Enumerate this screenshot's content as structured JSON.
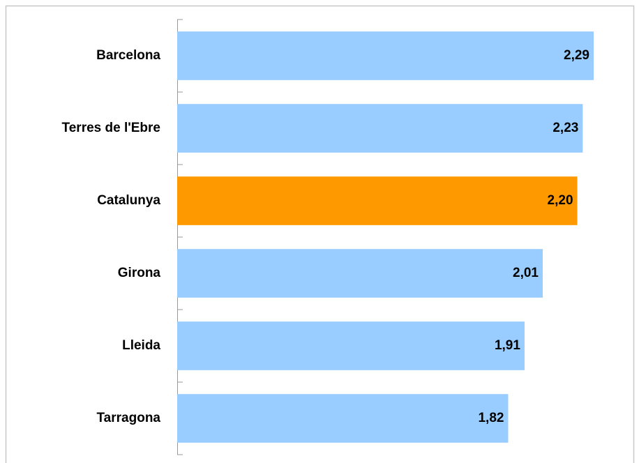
{
  "chart_data": {
    "type": "hbar",
    "categories": [
      "Barcelona",
      "Terres de l'Ebre",
      "Catalunya",
      "Girona",
      "Lleida",
      "Tarragona"
    ],
    "values": [
      2.29,
      2.23,
      2.2,
      2.01,
      1.91,
      1.82
    ],
    "value_labels": [
      "2,29",
      "2,23",
      "2,20",
      "2,01",
      "1,91",
      "1,82"
    ],
    "colors": [
      "#99ccff",
      "#99ccff",
      "#ff9900",
      "#99ccff",
      "#99ccff",
      "#99ccff"
    ]
  }
}
